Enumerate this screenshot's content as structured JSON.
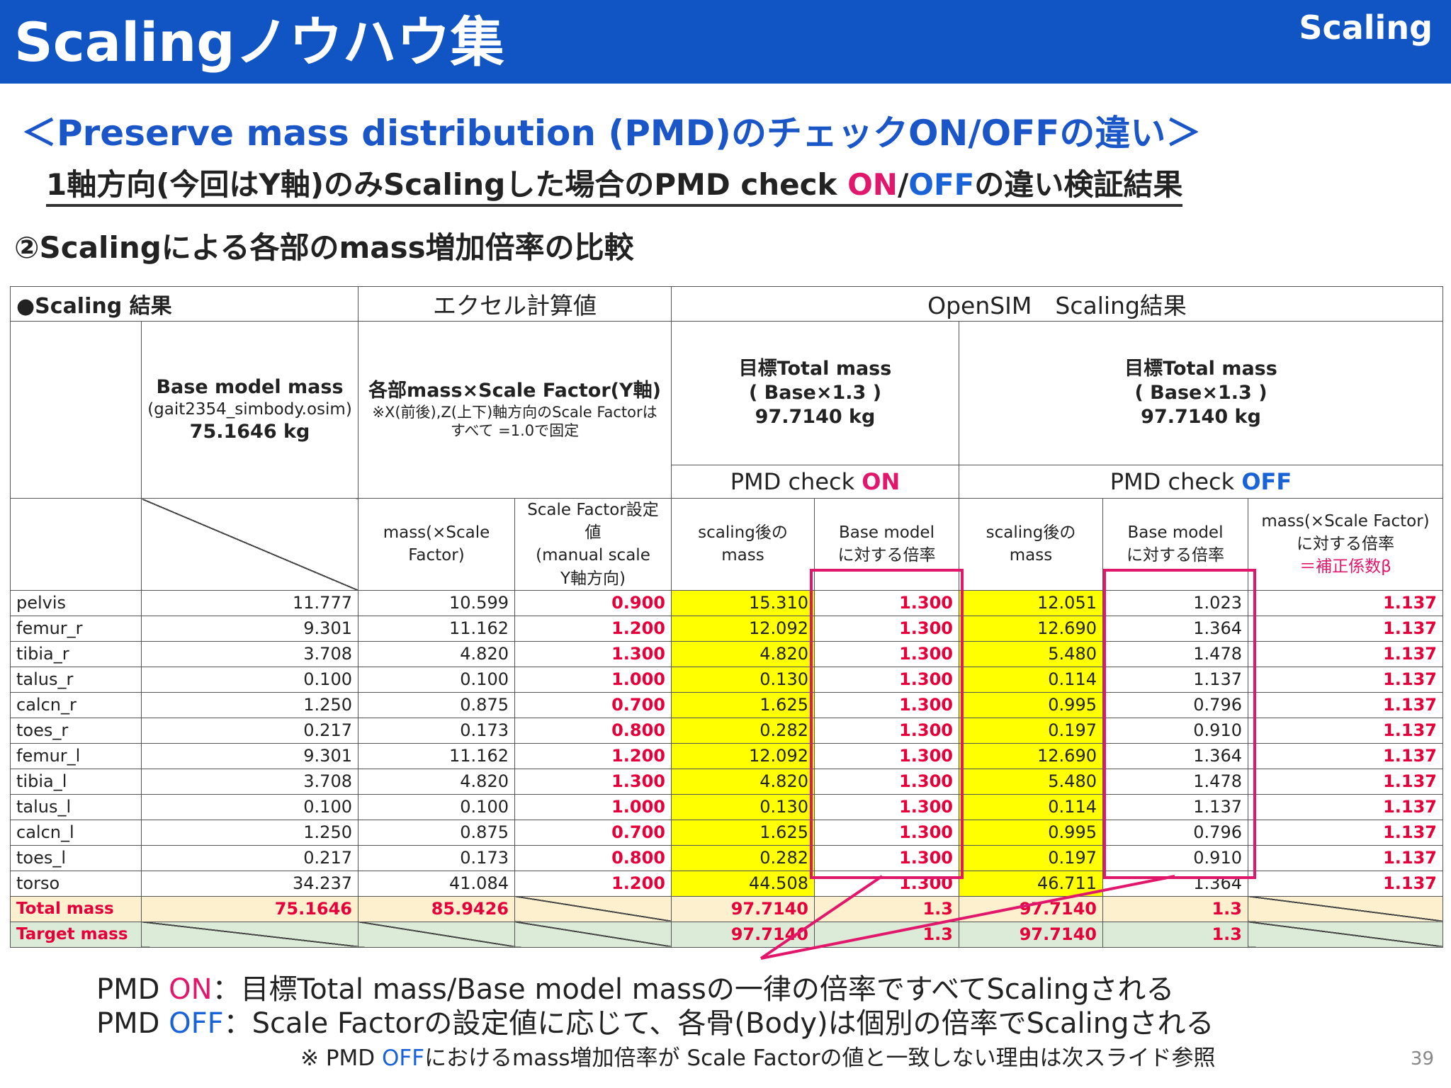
{
  "header": {
    "title": "Scalingノウハウ集",
    "tag": "Scaling"
  },
  "subtitle1": "＜Preserve mass distribution (PMD)のチェックON/OFFの違い＞",
  "subtitle2": {
    "prefix": "1軸方向(今回はY軸)のみScalingした場合のPMD check ",
    "on": "ON",
    "slash": "/",
    "off": "OFF",
    "suffix": "の違い検証結果"
  },
  "subtitle3": "②Scalingによる各部のmass増加倍率の比較",
  "table": {
    "corner_label": "●Scaling 結果",
    "section_excel": "エクセル計算値",
    "section_opensim": "OpenSIM　Scaling結果",
    "base_head": {
      "line1": "Base model mass",
      "line2": "(gait2354_simbody.osim)",
      "line3": "75.1646 kg"
    },
    "excel_head": {
      "line1": "各部mass×Scale Factor(Y軸)",
      "line2": "※X(前後),Z(上下)軸方向のScale Factorは",
      "line3": "すべて =1.0で固定"
    },
    "target_head": {
      "line1": "目標Total mass",
      "line2": "( Base×1.3 )",
      "line3": "97.7140 kg"
    },
    "pmd_on": {
      "prefix": "PMD check ",
      "state": "ON"
    },
    "pmd_off": {
      "prefix": "PMD check ",
      "state": "OFF"
    },
    "sub_mass": {
      "line1": "mass(×Scale",
      "line2": "Factor)"
    },
    "sub_sf": {
      "line1": "Scale Factor設定値",
      "line2": "(manual scale",
      "line3": "Y軸方向)"
    },
    "sub_scaled": {
      "line1": "scaling後の",
      "line2": "mass"
    },
    "sub_ratio": {
      "line1": "Base model",
      "line2": "に対する倍率"
    },
    "sub_last": {
      "line1": "mass(×Scale Factor)",
      "line2": "に対する倍率",
      "line3": "＝補正係数β"
    },
    "rows": [
      {
        "name": "pelvis",
        "base": "11.777",
        "mass": "10.599",
        "sf": "0.900",
        "on_mass": "15.310",
        "on_ratio": "1.300",
        "off_mass": "12.051",
        "off_ratio": "1.023",
        "beta": "1.137"
      },
      {
        "name": "femur_r",
        "base": "9.301",
        "mass": "11.162",
        "sf": "1.200",
        "on_mass": "12.092",
        "on_ratio": "1.300",
        "off_mass": "12.690",
        "off_ratio": "1.364",
        "beta": "1.137"
      },
      {
        "name": "tibia_r",
        "base": "3.708",
        "mass": "4.820",
        "sf": "1.300",
        "on_mass": "4.820",
        "on_ratio": "1.300",
        "off_mass": "5.480",
        "off_ratio": "1.478",
        "beta": "1.137"
      },
      {
        "name": "talus_r",
        "base": "0.100",
        "mass": "0.100",
        "sf": "1.000",
        "on_mass": "0.130",
        "on_ratio": "1.300",
        "off_mass": "0.114",
        "off_ratio": "1.137",
        "beta": "1.137"
      },
      {
        "name": "calcn_r",
        "base": "1.250",
        "mass": "0.875",
        "sf": "0.700",
        "on_mass": "1.625",
        "on_ratio": "1.300",
        "off_mass": "0.995",
        "off_ratio": "0.796",
        "beta": "1.137"
      },
      {
        "name": "toes_r",
        "base": "0.217",
        "mass": "0.173",
        "sf": "0.800",
        "on_mass": "0.282",
        "on_ratio": "1.300",
        "off_mass": "0.197",
        "off_ratio": "0.910",
        "beta": "1.137"
      },
      {
        "name": "femur_l",
        "base": "9.301",
        "mass": "11.162",
        "sf": "1.200",
        "on_mass": "12.092",
        "on_ratio": "1.300",
        "off_mass": "12.690",
        "off_ratio": "1.364",
        "beta": "1.137"
      },
      {
        "name": "tibia_l",
        "base": "3.708",
        "mass": "4.820",
        "sf": "1.300",
        "on_mass": "4.820",
        "on_ratio": "1.300",
        "off_mass": "5.480",
        "off_ratio": "1.478",
        "beta": "1.137"
      },
      {
        "name": "talus_l",
        "base": "0.100",
        "mass": "0.100",
        "sf": "1.000",
        "on_mass": "0.130",
        "on_ratio": "1.300",
        "off_mass": "0.114",
        "off_ratio": "1.137",
        "beta": "1.137"
      },
      {
        "name": "calcn_l",
        "base": "1.250",
        "mass": "0.875",
        "sf": "0.700",
        "on_mass": "1.625",
        "on_ratio": "1.300",
        "off_mass": "0.995",
        "off_ratio": "0.796",
        "beta": "1.137"
      },
      {
        "name": "toes_l",
        "base": "0.217",
        "mass": "0.173",
        "sf": "0.800",
        "on_mass": "0.282",
        "on_ratio": "1.300",
        "off_mass": "0.197",
        "off_ratio": "0.910",
        "beta": "1.137"
      },
      {
        "name": "torso",
        "base": "34.237",
        "mass": "41.084",
        "sf": "1.200",
        "on_mass": "44.508",
        "on_ratio": "1.300",
        "off_mass": "46.711",
        "off_ratio": "1.364",
        "beta": "1.137"
      }
    ],
    "total": {
      "label": "Total mass",
      "base": "75.1646",
      "mass": "85.9426",
      "on_mass": "97.7140",
      "on_ratio": "1.3",
      "off_mass": "97.7140",
      "off_ratio": "1.3"
    },
    "target": {
      "label": "Target mass",
      "on_mass": "97.7140",
      "on_ratio": "1.3",
      "off_mass": "97.7140",
      "off_ratio": "1.3"
    }
  },
  "notes": {
    "line1": {
      "prefix": "PMD ",
      "state": "ON",
      "text": "：目標Total mass/Base model massの一律の倍率ですべてScalingされる"
    },
    "line2": {
      "prefix": "PMD ",
      "state": "OFF",
      "text": "：Scale Factorの設定値に応じて、各骨(Body)は個別の倍率でScalingされる"
    },
    "line3": {
      "prefix": "※ PMD ",
      "state": "OFF",
      "text": "におけるmass増加倍率が Scale Factorの値と一致しない理由は次スライド参照"
    }
  },
  "page_number": "39"
}
